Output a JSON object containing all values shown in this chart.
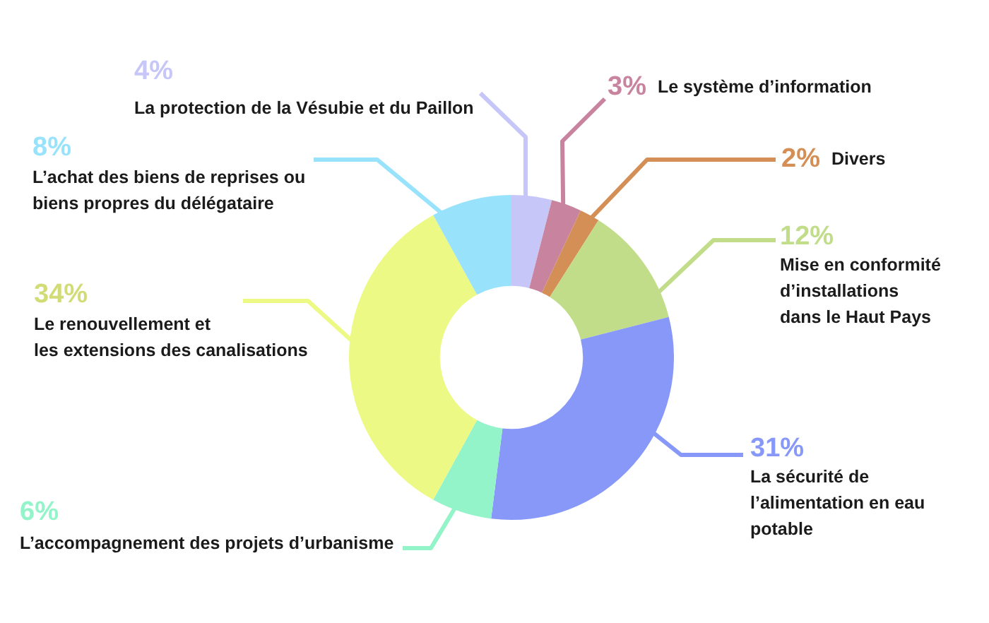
{
  "chart_data": {
    "type": "donut",
    "categories": [
      "La protection de la Vésubie et du Paillon",
      "Le système d’information",
      "Divers",
      "Mise en conformité d’installations dans le Haut Pays",
      "La sécurité de l’alimentation en eau potable",
      "L’accompagnement des projets d’urbanisme",
      "Le renouvellement et les extensions des canalisations",
      "L’achat des biens de reprises ou biens propres du délégataire"
    ],
    "values": [
      4,
      3,
      2,
      12,
      31,
      6,
      34,
      8
    ],
    "colors": [
      "#c6c6f8",
      "#c8849e",
      "#d38f55",
      "#c1dd8a",
      "#8798f8",
      "#93f3c9",
      "#edf985",
      "#98e3fb"
    ],
    "value_labels": [
      "4%",
      "3%",
      "2%",
      "12%",
      "31%",
      "6%",
      "34%",
      "8%"
    ]
  }
}
